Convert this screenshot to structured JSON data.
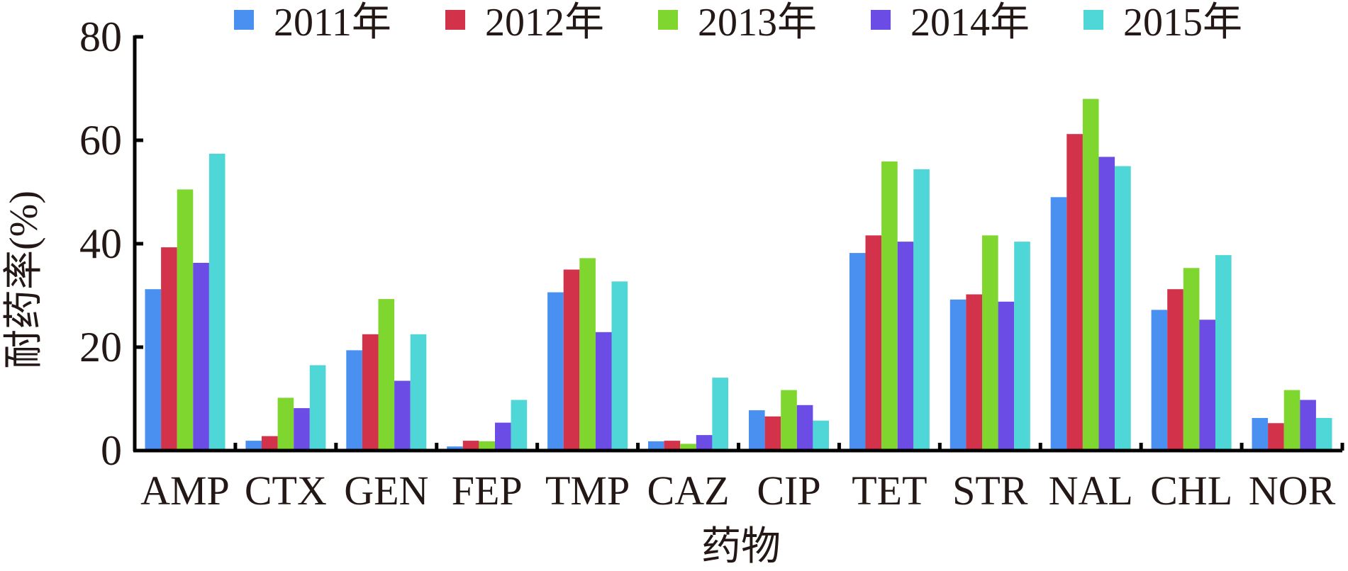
{
  "chart_data": {
    "type": "bar",
    "title": "",
    "xlabel": "药物",
    "ylabel": "耐药率(%)",
    "ylim": [
      0,
      80
    ],
    "yticks": [
      0,
      20,
      40,
      60,
      80
    ],
    "grid": false,
    "legend_position": "top",
    "categories": [
      "AMP",
      "CTX",
      "GEN",
      "FEP",
      "TMP",
      "CAZ",
      "CIP",
      "TET",
      "STR",
      "NAL",
      "CHL",
      "NOR"
    ],
    "series": [
      {
        "name": "2011年",
        "color": "#4a90f0",
        "values": [
          31.2,
          1.9,
          19.4,
          0.8,
          30.6,
          1.8,
          7.8,
          38.2,
          29.2,
          49.0,
          27.2,
          6.3
        ]
      },
      {
        "name": "2012年",
        "color": "#d2334a",
        "values": [
          39.3,
          2.8,
          22.5,
          1.9,
          35.0,
          1.9,
          6.6,
          41.6,
          30.2,
          61.2,
          31.2,
          5.3
        ]
      },
      {
        "name": "2013年",
        "color": "#7ed62e",
        "values": [
          50.5,
          10.2,
          29.3,
          1.8,
          37.2,
          1.3,
          11.7,
          55.9,
          41.6,
          68.0,
          35.3,
          11.7
        ]
      },
      {
        "name": "2014年",
        "color": "#6b4de6",
        "values": [
          36.3,
          8.2,
          13.5,
          5.4,
          22.9,
          3.0,
          8.8,
          40.4,
          28.8,
          56.8,
          25.3,
          9.8
        ]
      },
      {
        "name": "2015年",
        "color": "#4fd6d6",
        "values": [
          57.4,
          16.5,
          22.5,
          9.8,
          32.7,
          14.1,
          5.8,
          54.4,
          40.4,
          55.0,
          37.8,
          6.3
        ]
      }
    ]
  }
}
